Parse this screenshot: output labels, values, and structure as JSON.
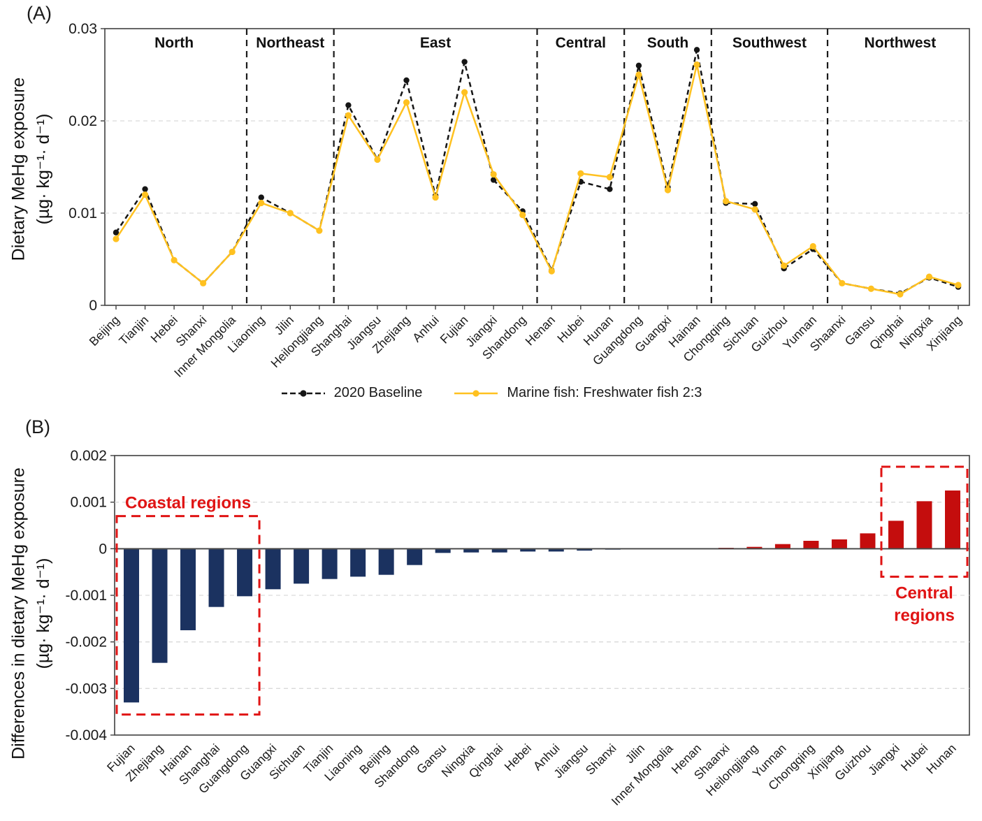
{
  "colors": {
    "axis": "#404040",
    "grid": "#d9d9d9",
    "zero_line": "#4d4d4d",
    "divider": "#1a1a1a",
    "baseline_series": "#151515",
    "scenario_series": "#FFC120",
    "negative_bar": "#1B3260",
    "positive_bar": "#C40D0D",
    "annotation_red": "#E01414"
  },
  "panel_a": {
    "label": "(A)",
    "y_title_1": "Dietary MeHg exposure",
    "y_title_2": "(µg· kg⁻¹· d⁻¹)"
  },
  "panel_b": {
    "label": "(B)",
    "y_title_1": "Differences in dietary MeHg exposure",
    "y_title_2": "(µg· kg⁻¹· d⁻¹)"
  },
  "chart_data": [
    {
      "type": "line",
      "title": "",
      "xlabel": "",
      "ylabel": "Dietary MeHg exposure (µg· kg⁻¹· d⁻¹)",
      "ylim": [
        0,
        0.03
      ],
      "yticks": [
        {
          "v": 0,
          "label": "0"
        },
        {
          "v": 0.01,
          "label": "0.01"
        },
        {
          "v": 0.02,
          "label": "0.02"
        },
        {
          "v": 0.03,
          "label": "0.03"
        }
      ],
      "grid": "dashed horizontal at 0.01 and 0.02",
      "legend_position": "bottom",
      "categories": [
        "Beijing",
        "Tianjin",
        "Hebei",
        "Shanxi",
        "Inner Mongolia",
        "Liaoning",
        "Jilin",
        "Heilongjiang",
        "Shanghai",
        "Jiangsu",
        "Zhejiang",
        "Anhui",
        "Fujian",
        "Jiangxi",
        "Shandong",
        "Henan",
        "Hubei",
        "Hunan",
        "Guangdong",
        "Guangxi",
        "Hainan",
        "Chongqing",
        "Sichuan",
        "Guizhou",
        "Yunnan",
        "Shaanxi",
        "Gansu",
        "Qinghai",
        "Ningxia",
        "Xinjiang"
      ],
      "regions": [
        {
          "name": "North",
          "count": 5
        },
        {
          "name": "Northeast",
          "count": 3
        },
        {
          "name": "East",
          "count": 7
        },
        {
          "name": "Central",
          "count": 3
        },
        {
          "name": "South",
          "count": 3
        },
        {
          "name": "Southwest",
          "count": 4
        },
        {
          "name": "Northwest",
          "count": 5
        }
      ],
      "series": [
        {
          "name": "2020 Baseline",
          "color": "#151515",
          "style": "dashed",
          "values": [
            0.0079,
            0.0126,
            0.0049,
            0.0024,
            0.0058,
            0.0117,
            0.01,
            0.0081,
            0.0217,
            0.0158,
            0.0244,
            0.0119,
            0.0264,
            0.0136,
            0.0102,
            0.0038,
            0.0134,
            0.0126,
            0.026,
            0.0128,
            0.0277,
            0.0111,
            0.011,
            0.004,
            0.0061,
            0.0024,
            0.0018,
            0.0013,
            0.003,
            0.002
          ]
        },
        {
          "name": "Marine fish: Freshwater fish 2:3",
          "color": "#FFC120",
          "style": "solid",
          "values": [
            0.0072,
            0.012,
            0.0049,
            0.0024,
            0.0058,
            0.0111,
            0.01,
            0.0081,
            0.0206,
            0.0158,
            0.022,
            0.0117,
            0.0231,
            0.0142,
            0.0098,
            0.0037,
            0.0143,
            0.0139,
            0.025,
            0.0125,
            0.0261,
            0.0113,
            0.0104,
            0.0043,
            0.0064,
            0.0024,
            0.0018,
            0.0012,
            0.0031,
            0.0022
          ]
        }
      ]
    },
    {
      "type": "bar",
      "title": "",
      "xlabel": "",
      "ylabel": "Differences in dietary MeHg exposure (µg· kg⁻¹· d⁻¹)",
      "ylim": [
        -0.004,
        0.002
      ],
      "yticks": [
        {
          "v": 0.002,
          "label": "0.002"
        },
        {
          "v": 0.001,
          "label": "0.001"
        },
        {
          "v": 0,
          "label": "0"
        },
        {
          "v": -0.001,
          "label": "-0.001"
        },
        {
          "v": -0.002,
          "label": "-0.002"
        },
        {
          "v": -0.003,
          "label": "-0.003"
        },
        {
          "v": -0.004,
          "label": "-0.004"
        }
      ],
      "grid": "dashed horizontal at 0.001, -0.001, -0.002, -0.003; solid zero line",
      "negative_color": "#1B3260",
      "positive_color": "#C40D0D",
      "categories": [
        "Fujian",
        "Zhejiang",
        "Hainan",
        "Shanghai",
        "Guangdong",
        "Guangxi",
        "Sichuan",
        "Tianjin",
        "Liaoning",
        "Beijing",
        "Shandong",
        "Gansu",
        "Ningxia",
        "Qinghai",
        "Hebei",
        "Anhui",
        "Jiangsu",
        "Shanxi",
        "Jilin",
        "Inner Mongolia",
        "Henan",
        "Shaanxi",
        "Heilongjiang",
        "Yunnan",
        "Chongqing",
        "Xinjiang",
        "Guizhou",
        "Jiangxi",
        "Hubei",
        "Hunan"
      ],
      "values": [
        -0.0033,
        -0.00245,
        -0.00175,
        -0.00125,
        -0.00102,
        -0.00087,
        -0.00075,
        -0.00065,
        -0.0006,
        -0.00056,
        -0.00035,
        -9e-05,
        -8e-05,
        -8e-05,
        -6e-05,
        -6e-05,
        -4e-05,
        -2e-05,
        -1e-05,
        -1e-05,
        -1e-05,
        2e-05,
        4e-05,
        0.0001,
        0.00017,
        0.0002,
        0.00033,
        0.0006,
        0.00102,
        0.00125
      ],
      "annotations": [
        {
          "label_lines": [
            "Coastal regions"
          ],
          "from_index": 0,
          "to_index": 4,
          "box_top_value": 0.0007,
          "box_bottom_value": -0.00356,
          "label_placement": "above-box",
          "color": "#E01414"
        },
        {
          "label_lines": [
            "Central",
            "regions"
          ],
          "from_index": 27,
          "to_index": 29,
          "box_top_value": 0.00176,
          "box_bottom_value": -0.0006,
          "label_placement": "below-box",
          "color": "#E01414"
        }
      ]
    }
  ]
}
